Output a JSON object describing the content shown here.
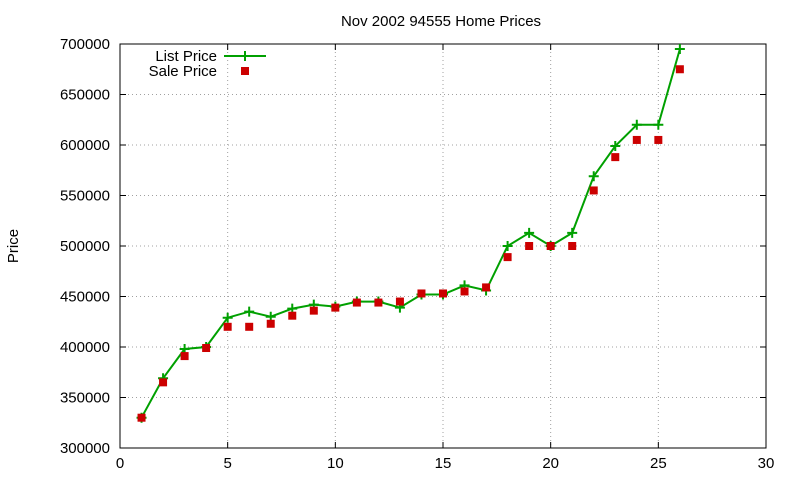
{
  "chart_data": {
    "type": "line",
    "title": "Nov 2002 94555 Home Prices",
    "xlabel": "",
    "ylabel": "Price",
    "xlim": [
      0,
      30
    ],
    "ylim": [
      300000,
      700000
    ],
    "x_ticks": [
      0,
      5,
      10,
      15,
      20,
      25,
      30
    ],
    "y_ticks": [
      300000,
      350000,
      400000,
      450000,
      500000,
      550000,
      600000,
      650000,
      700000
    ],
    "x_tick_labels": [
      "0",
      "5",
      "10",
      "15",
      "20",
      "25",
      "30"
    ],
    "y_tick_labels": [
      "300000",
      "350000",
      "400000",
      "450000",
      "500000",
      "550000",
      "600000",
      "650000",
      "700000"
    ],
    "grid": true,
    "legend_position": "top-left",
    "x": [
      1,
      2,
      3,
      4,
      5,
      6,
      7,
      8,
      9,
      10,
      11,
      12,
      13,
      14,
      15,
      16,
      17,
      18,
      19,
      20,
      21,
      22,
      23,
      24,
      25,
      26
    ],
    "series": [
      {
        "name": "List Price",
        "style": "line-with-plus-markers",
        "color": "#00a000",
        "values": [
          330000,
          369000,
          398000,
          400000,
          429000,
          435000,
          430000,
          438000,
          442000,
          440000,
          445000,
          445000,
          439000,
          452000,
          452000,
          461000,
          456000,
          500000,
          513000,
          500000,
          513000,
          569000,
          599000,
          620000,
          620000,
          695000
        ]
      },
      {
        "name": "Sale Price",
        "style": "square-points",
        "color": "#cc0000",
        "values": [
          330000,
          365000,
          391000,
          399000,
          420000,
          420000,
          423000,
          431000,
          436000,
          439000,
          444000,
          444000,
          445000,
          453000,
          453000,
          455000,
          459000,
          489000,
          500000,
          500000,
          500000,
          555000,
          588000,
          605000,
          605000,
          675000
        ]
      }
    ]
  }
}
